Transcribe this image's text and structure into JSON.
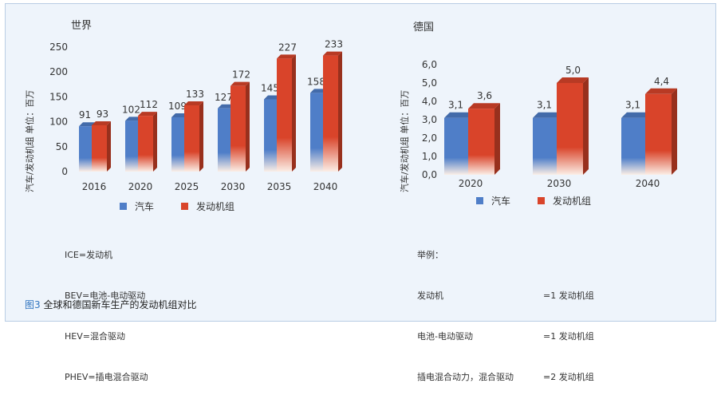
{
  "caption": {
    "figure_label": "图3",
    "text": "全球和德国新车生产的发动机组对比"
  },
  "legend": {
    "car": "汽车",
    "engine": "发动机组"
  },
  "colors": {
    "car": "#4f7ec8",
    "engine": "#d9442a"
  },
  "chart_data": [
    {
      "type": "bar",
      "title": "世界",
      "ylabel": "汽车/发动机组  单位：百万",
      "ylim": [
        0,
        250
      ],
      "yticks": [
        "0",
        "50",
        "100",
        "150",
        "200",
        "250"
      ],
      "categories": [
        "2016",
        "2020",
        "2025",
        "2030",
        "2035",
        "2040"
      ],
      "series": [
        {
          "name": "汽车",
          "values": [
            91,
            102,
            109,
            127,
            145,
            158
          ],
          "labels": [
            "91",
            "102",
            "109",
            "127",
            "145",
            "158"
          ]
        },
        {
          "name": "发动机组",
          "values": [
            93,
            112,
            133,
            172,
            227,
            233
          ],
          "labels": [
            "93",
            "112",
            "133",
            "172",
            "227",
            "233"
          ]
        }
      ],
      "grid": false,
      "legend_position": "bottom"
    },
    {
      "type": "bar",
      "title": "德国",
      "ylabel": "汽车/发动机组  单位：百万",
      "ylim": [
        0,
        6
      ],
      "yticks": [
        "0,0",
        "1,0",
        "2,0",
        "3,0",
        "4,0",
        "5,0",
        "6,0"
      ],
      "categories": [
        "2020",
        "2030",
        "2040"
      ],
      "series": [
        {
          "name": "汽车",
          "values": [
            3.1,
            3.1,
            3.1
          ],
          "labels": [
            "3,1",
            "3,1",
            "3,1"
          ]
        },
        {
          "name": "发动机组",
          "values": [
            3.6,
            5.0,
            4.4
          ],
          "labels": [
            "3,6",
            "5,0",
            "4,4"
          ]
        }
      ],
      "grid": false,
      "legend_position": "bottom"
    }
  ],
  "notes_left": [
    "ICE=发动机",
    "BEV=电池-电动驱动",
    "HEV=混合驱动",
    "PHEV=插电混合驱动"
  ],
  "notes_right": {
    "heading": "举例：",
    "rows": [
      {
        "term": "发动机",
        "value": "=1 发动机组"
      },
      {
        "term": "电池-电动驱动",
        "value": "=1 发动机组"
      },
      {
        "term": "插电混合动力，混合驱动",
        "value": "=2 发动机组"
      }
    ]
  }
}
